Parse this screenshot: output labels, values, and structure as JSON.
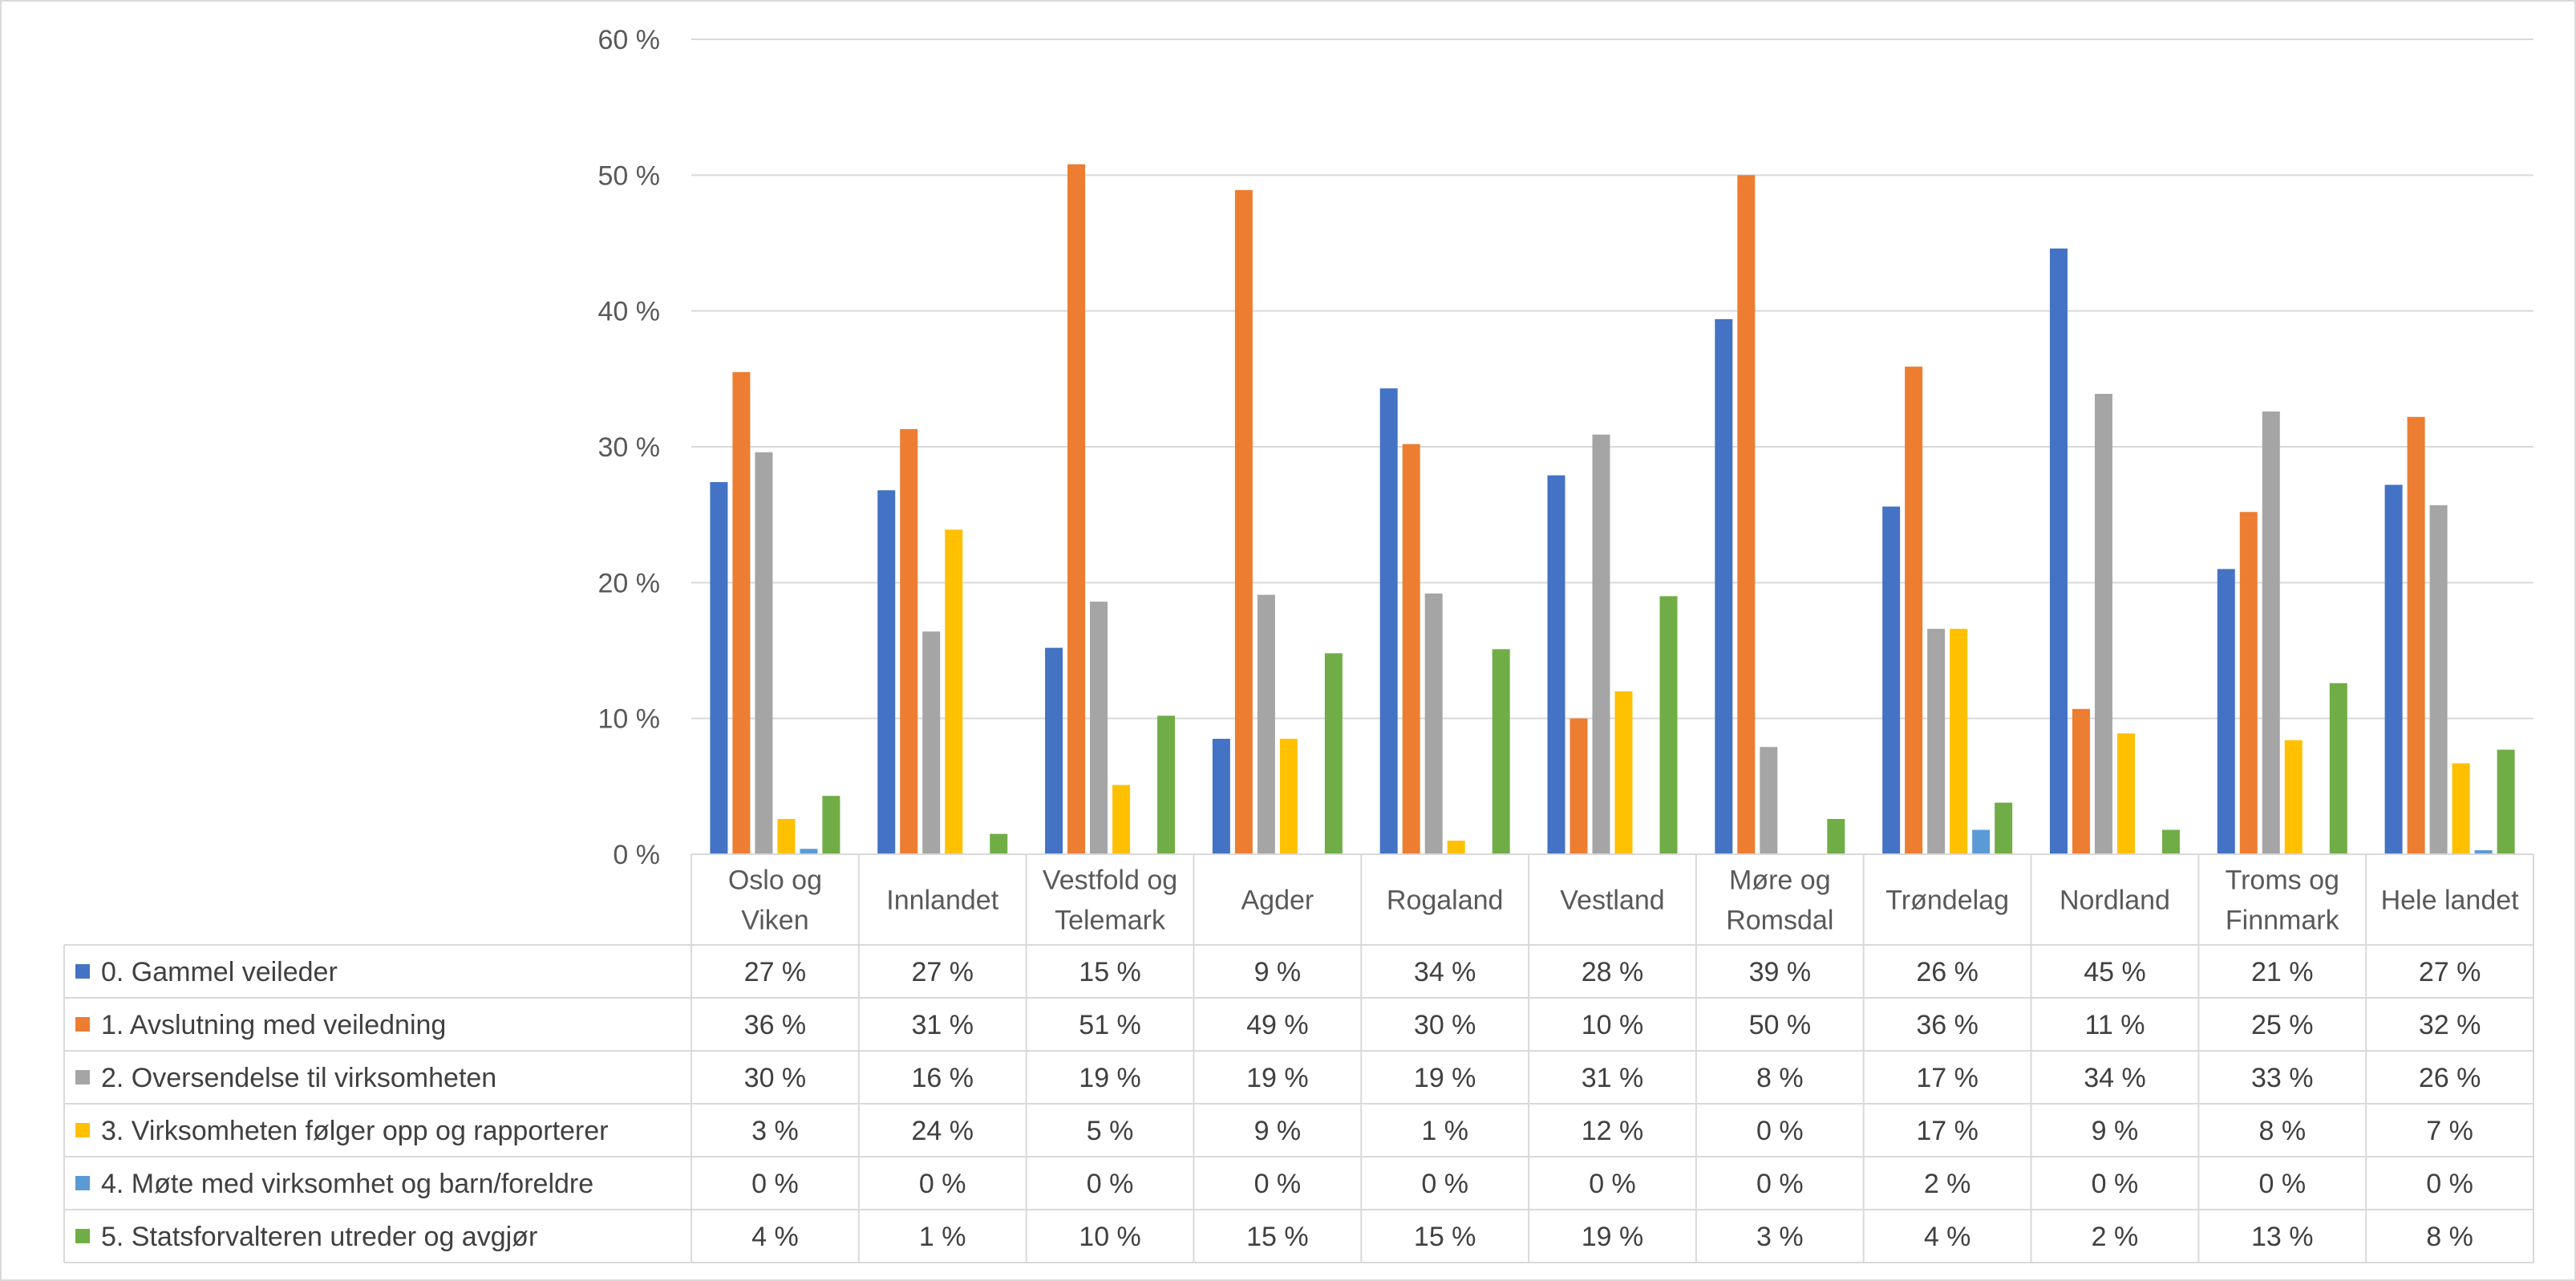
{
  "chart_data": {
    "type": "bar",
    "title": "",
    "xlabel": "",
    "ylabel": "",
    "ylim": [
      0,
      60
    ],
    "yticks": [
      "0 %",
      "10 %",
      "20 %",
      "30 %",
      "40 %",
      "50 %",
      "60 %"
    ],
    "grid": true,
    "legend_placement": "data-table-left",
    "categories": [
      [
        "Oslo og",
        "Viken"
      ],
      [
        "Innlandet"
      ],
      [
        "Vestfold og",
        "Telemark"
      ],
      [
        "Agder"
      ],
      [
        "Rogaland"
      ],
      [
        "Vestland"
      ],
      [
        "Møre og",
        "Romsdal"
      ],
      [
        "Trøndelag"
      ],
      [
        "Nordland"
      ],
      [
        "Troms og",
        "Finnmark"
      ],
      [
        "Hele landet"
      ]
    ],
    "series": [
      {
        "name": "0. Gammel veileder",
        "color": "#4472C4",
        "values": [
          27.4,
          26.8,
          15.2,
          8.5,
          34.3,
          27.9,
          39.4,
          25.6,
          44.6,
          21.0,
          27.2
        ],
        "labels": [
          "27 %",
          "27 %",
          "15 %",
          "9 %",
          "34 %",
          "28 %",
          "39 %",
          "26 %",
          "45 %",
          "21 %",
          "27 %"
        ]
      },
      {
        "name": "1. Avslutning med veiledning",
        "color": "#ED7D31",
        "values": [
          35.5,
          31.3,
          50.8,
          48.9,
          30.2,
          10.0,
          50.0,
          35.9,
          10.7,
          25.2,
          32.2
        ],
        "labels": [
          "36 %",
          "31 %",
          "51 %",
          "49 %",
          "30 %",
          "10 %",
          "50 %",
          "36 %",
          "11 %",
          "25 %",
          "32 %"
        ]
      },
      {
        "name": "2. Oversendelse til virksomheten",
        "color": "#A5A5A5",
        "values": [
          29.6,
          16.4,
          18.6,
          19.1,
          19.2,
          30.9,
          7.9,
          16.6,
          33.9,
          32.6,
          25.7
        ],
        "labels": [
          "30 %",
          "16 %",
          "19 %",
          "19 %",
          "19 %",
          "31 %",
          "8 %",
          "17 %",
          "34 %",
          "33 %",
          "26 %"
        ]
      },
      {
        "name": "3. Virksomheten følger opp og rapporterer",
        "color": "#FFC000",
        "values": [
          2.6,
          23.9,
          5.1,
          8.5,
          1.0,
          12.0,
          0.0,
          16.6,
          8.9,
          8.4,
          6.7
        ],
        "labels": [
          "3 %",
          "24 %",
          "5 %",
          "9 %",
          "1 %",
          "12 %",
          "0 %",
          "17 %",
          "9 %",
          "8 %",
          "7 %"
        ]
      },
      {
        "name": "4. Møte med virksomhet og barn/foreldre",
        "color": "#5B9BD5",
        "values": [
          0.4,
          0.0,
          0.0,
          0.0,
          0.0,
          0.0,
          0.0,
          1.8,
          0.0,
          0.0,
          0.3
        ],
        "labels": [
          "0 %",
          "0 %",
          "0 %",
          "0 %",
          "0 %",
          "0 %",
          "0 %",
          "2 %",
          "0 %",
          "0 %",
          "0 %"
        ]
      },
      {
        "name": "5. Statsforvalteren utreder og avgjør",
        "color": "#70AD47",
        "values": [
          4.3,
          1.5,
          10.2,
          14.8,
          15.1,
          19.0,
          2.6,
          3.8,
          1.8,
          12.6,
          7.7
        ],
        "labels": [
          "4 %",
          "1 %",
          "10 %",
          "15 %",
          "15 %",
          "19 %",
          "3 %",
          "4 %",
          "2 %",
          "13 %",
          "8 %"
        ]
      }
    ]
  }
}
